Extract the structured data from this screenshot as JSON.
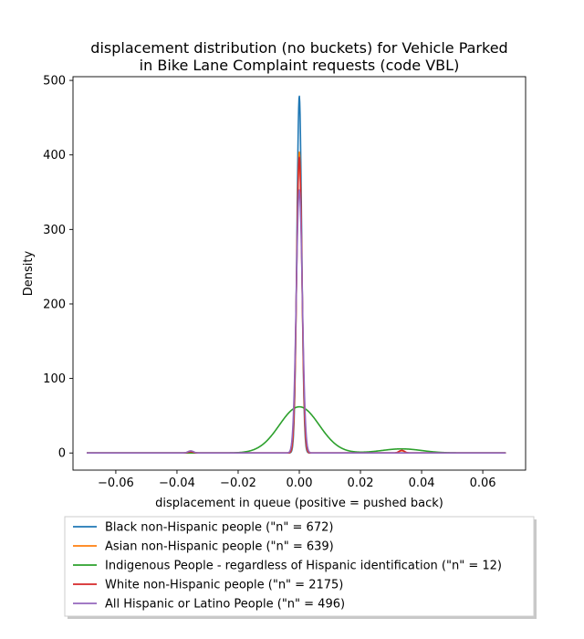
{
  "chart_data": {
    "type": "line",
    "title_lines": [
      "displacement distribution (no buckets)  for Vehicle Parked",
      "in Bike Lane Complaint requests (code VBL)"
    ],
    "xlabel": "displacement in queue (positive = pushed back)",
    "ylabel": "Density",
    "xlim": [
      -0.074,
      0.074
    ],
    "ylim": [
      -23,
      505
    ],
    "x_ticks": [
      -0.06,
      -0.04,
      -0.02,
      0.0,
      0.02,
      0.04,
      0.06
    ],
    "x_tick_labels": [
      "−0.06",
      "−0.04",
      "−0.02",
      "0.00",
      "0.02",
      "0.04",
      "0.06"
    ],
    "y_ticks": [
      0,
      100,
      200,
      300,
      400,
      500
    ],
    "y_tick_labels": [
      "0",
      "100",
      "200",
      "300",
      "400",
      "500"
    ],
    "grid": false,
    "legend_placement": "below plot",
    "x_range": [
      -0.0695,
      0.0675
    ],
    "series": [
      {
        "name": "Black non-Hispanic people (\"n\" = 672)",
        "color": "#1f77b4",
        "components": [
          {
            "mu": 0.0,
            "peak": 479,
            "sigma": 0.00078
          }
        ]
      },
      {
        "name": "Asian non-Hispanic people (\"n\" = 639)",
        "color": "#ff7f0e",
        "components": [
          {
            "mu": 0.0,
            "peak": 404,
            "sigma": 0.00085
          },
          {
            "mu": -0.0355,
            "peak": 2.5,
            "sigma": 0.0009
          },
          {
            "mu": 0.0335,
            "peak": 3,
            "sigma": 0.0009
          }
        ]
      },
      {
        "name": "Indigenous People - regardless of Hispanic identification (\"n\" = 12)",
        "color": "#2ca02c",
        "components": [
          {
            "mu": 0.0,
            "peak": 62,
            "sigma": 0.0065
          },
          {
            "mu": 0.0335,
            "peak": 5.5,
            "sigma": 0.0065
          }
        ]
      },
      {
        "name": "White non-Hispanic people (\"n\" = 2175)",
        "color": "#d62728",
        "components": [
          {
            "mu": 0.0,
            "peak": 397,
            "sigma": 0.00088
          },
          {
            "mu": -0.0355,
            "peak": 1.5,
            "sigma": 0.0009
          },
          {
            "mu": 0.0335,
            "peak": 3.5,
            "sigma": 0.0009
          }
        ]
      },
      {
        "name": "All Hispanic or Latino People (\"n\" = 496)",
        "color": "#9467bd",
        "components": [
          {
            "mu": 0.0,
            "peak": 353,
            "sigma": 0.00098
          },
          {
            "mu": -0.0355,
            "peak": 2.8,
            "sigma": 0.0009
          }
        ]
      }
    ]
  }
}
